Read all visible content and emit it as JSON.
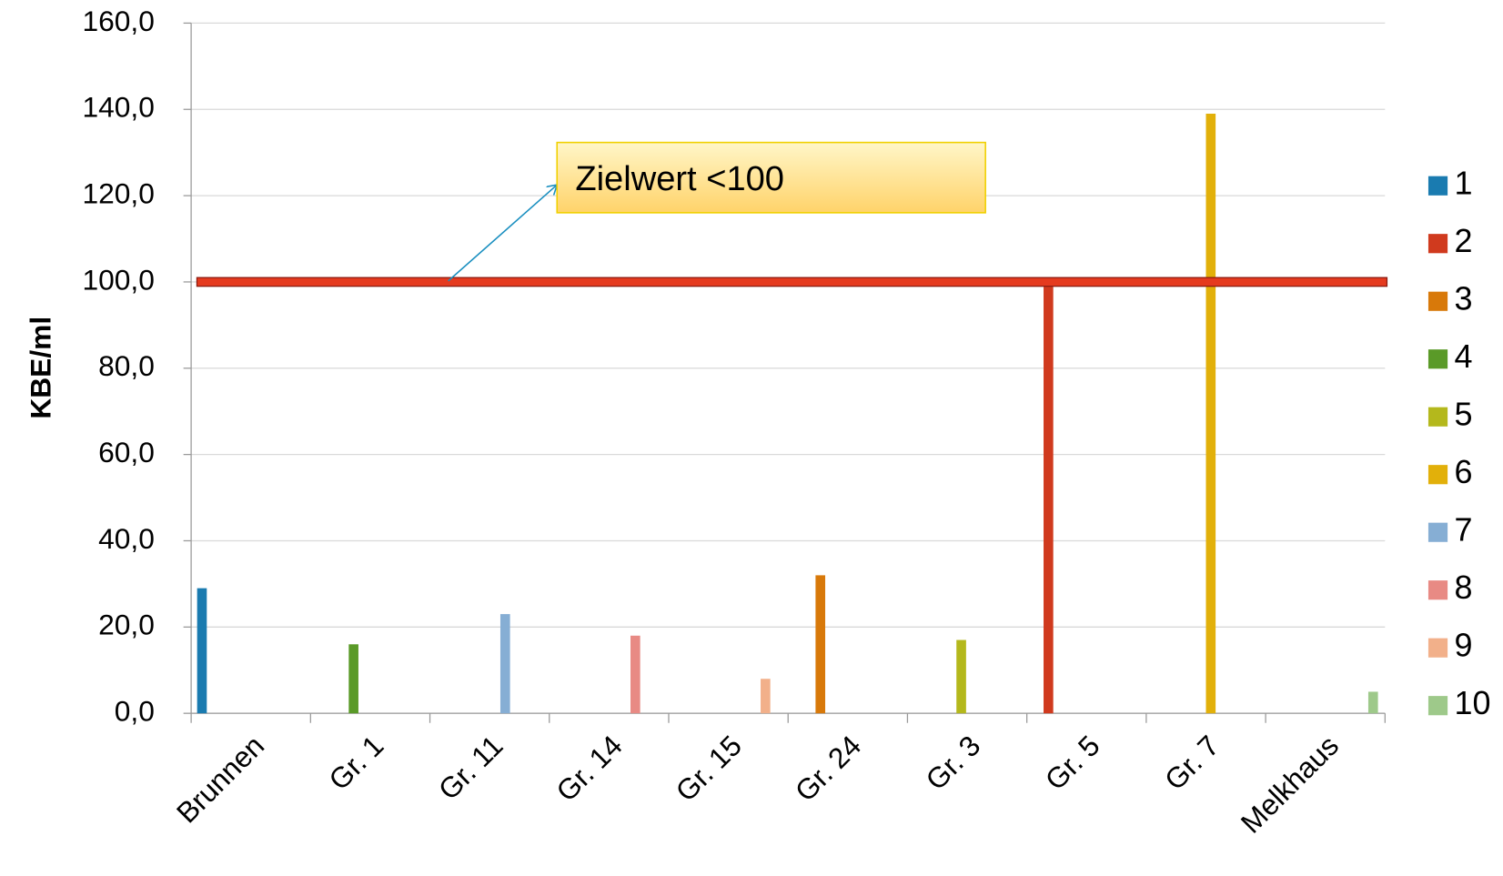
{
  "chart_data": {
    "type": "bar",
    "y_label": "KBE/ml",
    "categories": [
      "Brunnen",
      "Gr. 1",
      "Gr. 11",
      "Gr. 14",
      "Gr. 15",
      "Gr. 24",
      "Gr. 3",
      "Gr. 5",
      "Gr. 7",
      "Melkhaus"
    ],
    "series": [
      {
        "name": "1",
        "color": "#1a7bb0",
        "values": [
          29,
          null,
          null,
          null,
          null,
          null,
          null,
          null,
          null,
          null
        ]
      },
      {
        "name": "2",
        "color": "#d03a1e",
        "values": [
          null,
          null,
          null,
          null,
          null,
          null,
          null,
          99,
          null,
          null
        ]
      },
      {
        "name": "3",
        "color": "#d8790a",
        "values": [
          null,
          null,
          null,
          null,
          null,
          32,
          null,
          null,
          null,
          null
        ]
      },
      {
        "name": "4",
        "color": "#5a9a28",
        "values": [
          null,
          16,
          null,
          null,
          null,
          null,
          null,
          null,
          null,
          null
        ]
      },
      {
        "name": "5",
        "color": "#b4b81c",
        "values": [
          null,
          null,
          null,
          null,
          null,
          null,
          17,
          null,
          null,
          null
        ]
      },
      {
        "name": "6",
        "color": "#e2b00a",
        "values": [
          null,
          null,
          null,
          null,
          null,
          null,
          null,
          null,
          139,
          null
        ]
      },
      {
        "name": "7",
        "color": "#86aed4",
        "values": [
          null,
          null,
          23,
          null,
          null,
          null,
          null,
          null,
          null,
          null
        ]
      },
      {
        "name": "8",
        "color": "#e88a84",
        "values": [
          null,
          null,
          null,
          18,
          null,
          null,
          null,
          null,
          null,
          null
        ]
      },
      {
        "name": "9",
        "color": "#f2b08a",
        "values": [
          null,
          null,
          null,
          null,
          8,
          null,
          null,
          null,
          null,
          null
        ]
      },
      {
        "name": "10",
        "color": "#9ec98a",
        "values": [
          null,
          null,
          null,
          null,
          null,
          null,
          null,
          null,
          null,
          5
        ]
      }
    ],
    "ylim": [
      0,
      160
    ],
    "yticks": [
      {
        "value": 0,
        "label": "0,0"
      },
      {
        "value": 20,
        "label": "20,0"
      },
      {
        "value": 40,
        "label": "40,0"
      },
      {
        "value": 60,
        "label": "60,0"
      },
      {
        "value": 80,
        "label": "80,0"
      },
      {
        "value": 100,
        "label": "100,0"
      },
      {
        "value": 120,
        "label": "120,0"
      },
      {
        "value": 140,
        "label": "140,0"
      },
      {
        "value": 160,
        "label": "160,0"
      }
    ],
    "grid": true,
    "legend": "right",
    "threshold": {
      "value": 100,
      "color": "#e53a1e",
      "label": "Zielwert <100"
    }
  }
}
